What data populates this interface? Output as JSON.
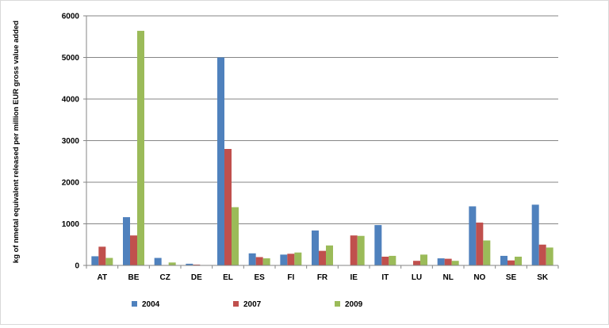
{
  "chart_data": {
    "type": "bar",
    "title": "",
    "xlabel": "",
    "ylabel": "kg of nmetal equivalent released per million EUR gross value added",
    "ylim": [
      0,
      6000
    ],
    "yticks": [
      0,
      1000,
      2000,
      3000,
      4000,
      5000,
      6000
    ],
    "grid": true,
    "legend_position": "bottom",
    "categories": [
      "AT",
      "BE",
      "CZ",
      "DE",
      "EL",
      "ES",
      "FI",
      "FR",
      "IE",
      "IT",
      "LU",
      "NL",
      "NO",
      "SE",
      "SK"
    ],
    "series": [
      {
        "name": "2004",
        "color": "#4f81bd",
        "values": [
          220,
          1160,
          180,
          40,
          5000,
          290,
          260,
          840,
          0,
          970,
          0,
          170,
          1420,
          230,
          1460
        ]
      },
      {
        "name": "2007",
        "color": "#c0504d",
        "values": [
          450,
          720,
          0,
          20,
          2800,
          200,
          280,
          350,
          720,
          210,
          110,
          160,
          1030,
          120,
          500
        ]
      },
      {
        "name": "2009",
        "color": "#9bbb59",
        "values": [
          180,
          5640,
          70,
          0,
          1400,
          170,
          310,
          480,
          710,
          230,
          260,
          110,
          600,
          210,
          430
        ]
      }
    ]
  }
}
